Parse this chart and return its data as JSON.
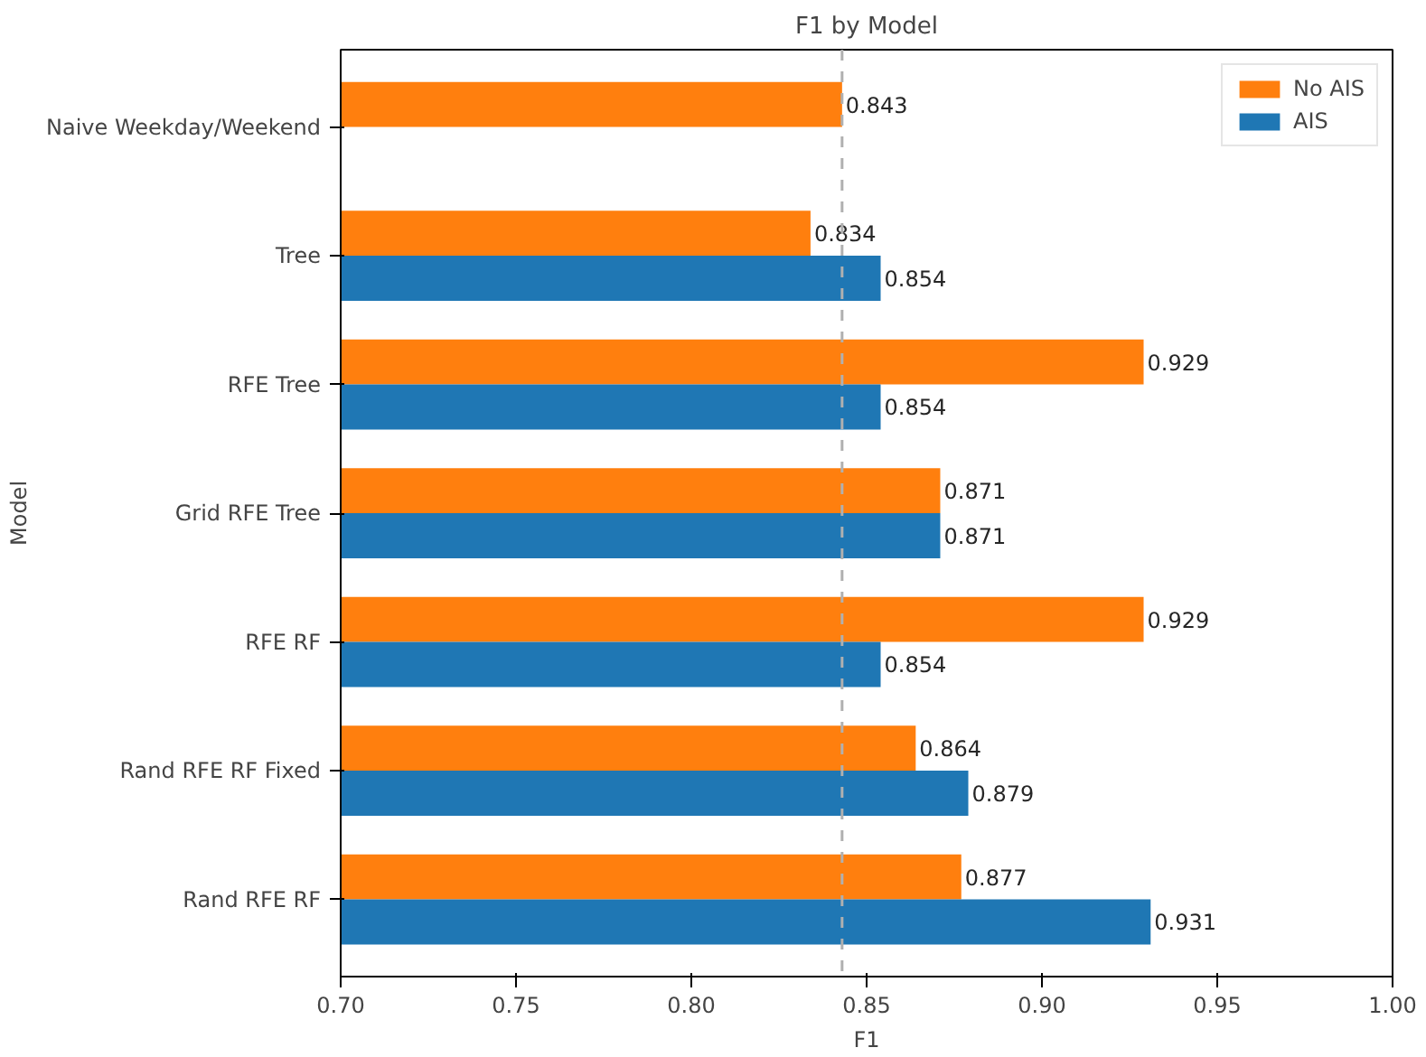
{
  "chart_data": {
    "type": "bar",
    "orientation": "horizontal",
    "title": "F1 by Model",
    "xlabel": "F1",
    "ylabel": "Model",
    "categories": [
      "Naive Weekday/Weekend",
      "Tree",
      "RFE Tree",
      "Grid RFE Tree",
      "RFE RF",
      "Rand RFE RF Fixed",
      "Rand RFE RF"
    ],
    "series": [
      {
        "name": "No AIS",
        "color": "#ff7f0e",
        "values": [
          0.843,
          0.834,
          0.929,
          0.871,
          0.929,
          0.864,
          0.877
        ]
      },
      {
        "name": "AIS",
        "color": "#1f77b4",
        "values": [
          null,
          0.854,
          0.854,
          0.871,
          0.854,
          0.879,
          0.931
        ]
      }
    ],
    "xlim": [
      0.7,
      1.0
    ],
    "xticks": [
      {
        "value": 0.7,
        "label": "0.70"
      },
      {
        "value": 0.75,
        "label": "0.75"
      },
      {
        "value": 0.8,
        "label": "0.80"
      },
      {
        "value": 0.85,
        "label": "0.85"
      },
      {
        "value": 0.9,
        "label": "0.90"
      },
      {
        "value": 0.95,
        "label": "0.95"
      },
      {
        "value": 1.0,
        "label": "1.00"
      }
    ],
    "ref_lines": [
      {
        "axis": "x",
        "value": 0.843,
        "label": null,
        "color": "#b0b0b0",
        "line_style": "dashed"
      }
    ],
    "data_labels": true,
    "legend": "top right",
    "grid": false
  }
}
